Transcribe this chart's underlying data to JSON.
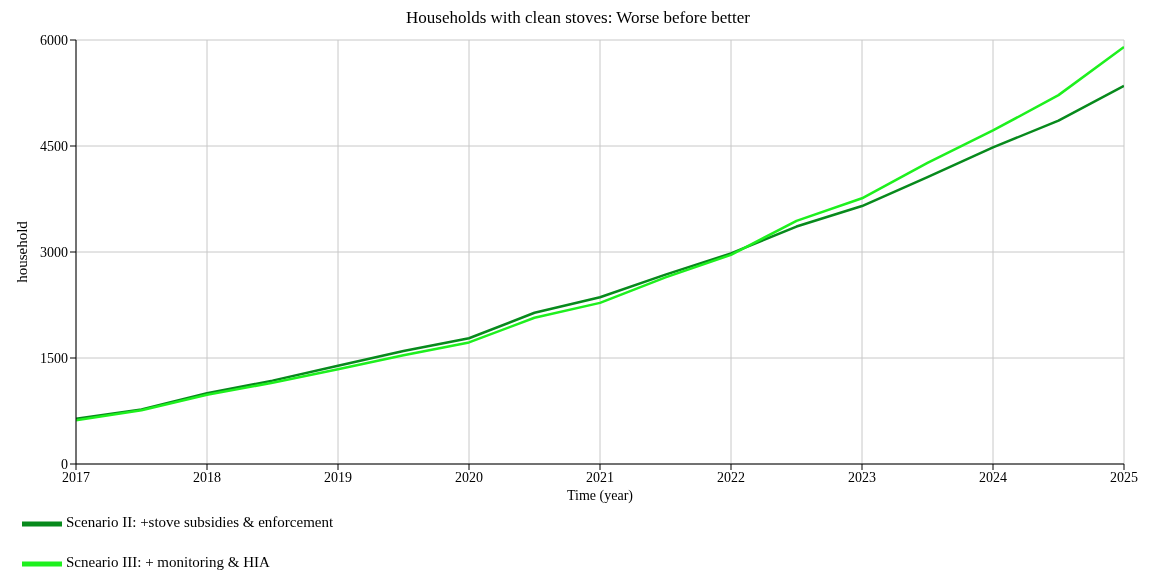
{
  "chart_data": {
    "type": "line",
    "title": "Households with clean stoves: Worse before better",
    "xlabel": "Time (year)",
    "ylabel": "household",
    "x": [
      2017,
      2017.5,
      2018,
      2018.5,
      2019,
      2019.5,
      2020,
      2020.5,
      2021,
      2021.5,
      2022,
      2022.5,
      2023,
      2023.5,
      2024,
      2024.5,
      2025
    ],
    "series": [
      {
        "name": "Scenario II: +stove subsidies & enforcement",
        "color": "#078a1c",
        "values": [
          640,
          770,
          1000,
          1180,
          1390,
          1600,
          1780,
          2140,
          2360,
          2680,
          2980,
          3360,
          3650,
          4060,
          4480,
          4860,
          5350
        ]
      },
      {
        "name": "Scneario III: + monitoring & HIA",
        "color": "#1ef01e",
        "values": [
          620,
          760,
          980,
          1150,
          1340,
          1540,
          1720,
          2070,
          2280,
          2640,
          2960,
          3440,
          3760,
          4260,
          4720,
          5220,
          5900
        ]
      }
    ],
    "xlim": [
      2017,
      2025
    ],
    "xticks": [
      2017,
      2018,
      2019,
      2020,
      2021,
      2022,
      2023,
      2024,
      2025
    ],
    "ylim": [
      0,
      6000
    ],
    "yticks": [
      0,
      1500,
      3000,
      4500,
      6000
    ],
    "grid": true,
    "legend": "bottom",
    "marker": "none",
    "line_style": "solid"
  }
}
